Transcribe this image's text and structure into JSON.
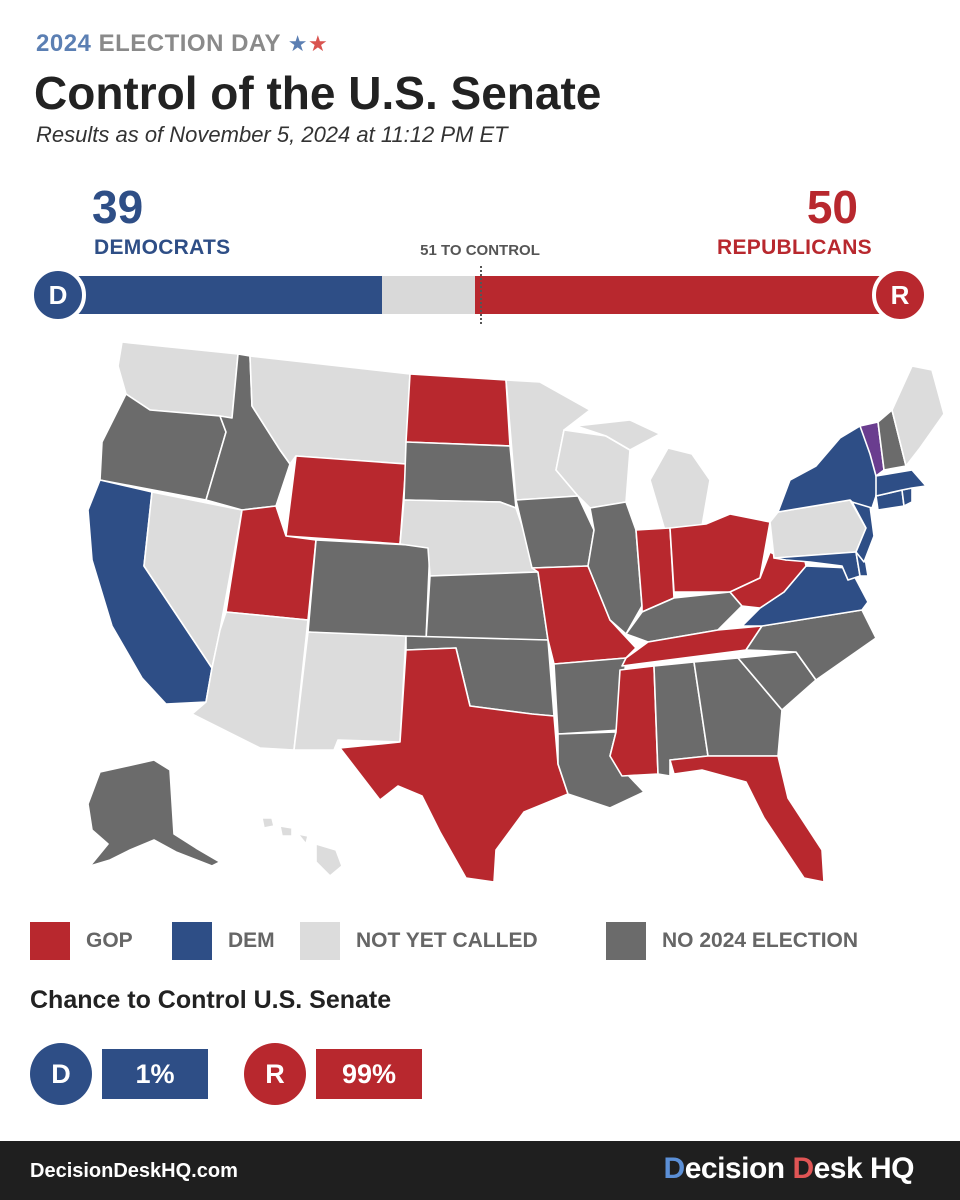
{
  "header": {
    "kicker_year": "2024",
    "kicker_rest": "ELECTION DAY",
    "stars": "★★",
    "title": "Control of the U.S. Senate",
    "subtitle": "Results as of November 5, 2024 at 11:12 PM ET"
  },
  "tally": {
    "dem_count": "39",
    "dem_label": "DEMOCRATS",
    "rep_count": "50",
    "rep_label": "REPUBLICANS",
    "threshold_label": "51 TO CONTROL",
    "dem_seats": 39,
    "rep_seats": 50,
    "total_seats": 100,
    "d_badge": "D",
    "r_badge": "R"
  },
  "colors": {
    "gop": "#b8282e",
    "dem": "#2e4e86",
    "not_called": "#dcdcdc",
    "no_election": "#6b6b6b",
    "split": "#6a3d8f"
  },
  "legend": [
    {
      "label": "GOP",
      "color": "#b8282e"
    },
    {
      "label": "DEM",
      "color": "#2e4e86"
    },
    {
      "label": "NOT YET CALLED",
      "color": "#dcdcdc"
    },
    {
      "label": "NO 2024 ELECTION",
      "color": "#6b6b6b"
    }
  ],
  "chance": {
    "title": "Chance to Control U.S. Senate",
    "d_badge": "D",
    "d_value": "1%",
    "r_badge": "R",
    "r_value": "99%"
  },
  "footer": {
    "url": "DecisionDeskHQ.com",
    "brand_a": "D",
    "brand_b": "ecision ",
    "brand_c": "D",
    "brand_d": "esk HQ"
  },
  "map": {
    "states": {
      "WA": "not_called",
      "OR": "no_election",
      "CA": "dem",
      "NV": "not_called",
      "ID": "no_election",
      "MT": "not_called",
      "WY": "gop",
      "UT": "gop",
      "AZ": "not_called",
      "CO": "no_election",
      "NM": "not_called",
      "ND": "gop",
      "SD": "no_election",
      "NE": "not_called",
      "KS": "no_election",
      "OK": "no_election",
      "TX": "gop",
      "MN": "not_called",
      "IA": "no_election",
      "MO": "gop",
      "AR": "no_election",
      "LA": "no_election",
      "WI": "not_called",
      "IL": "no_election",
      "MI": "not_called",
      "IN": "gop",
      "OH": "gop",
      "KY": "no_election",
      "TN": "gop",
      "MS": "gop",
      "AL": "no_election",
      "GA": "no_election",
      "FL": "gop",
      "SC": "no_election",
      "NC": "no_election",
      "VA": "dem",
      "WV": "gop",
      "MD": "dem",
      "DE": "dem",
      "PA": "not_called",
      "NJ": "dem",
      "NY": "dem",
      "CT": "dem",
      "RI": "dem",
      "MA": "dem",
      "VT": "split",
      "NH": "no_election",
      "ME": "not_called",
      "AK": "no_election",
      "HI": "not_called"
    }
  }
}
